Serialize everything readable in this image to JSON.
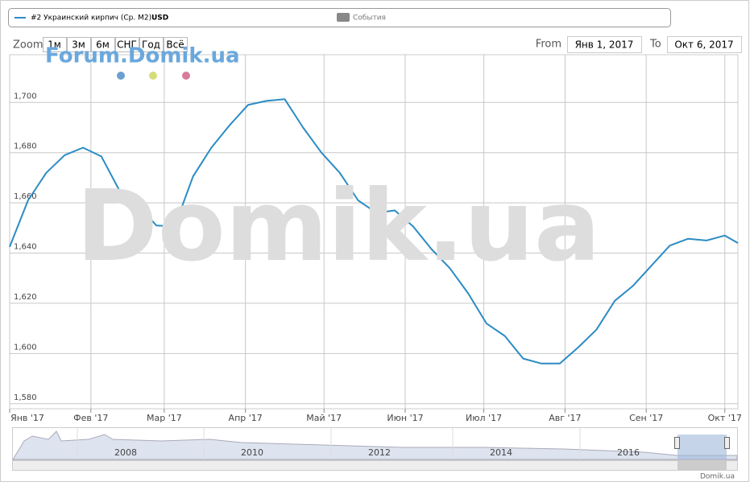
{
  "chart_data": {
    "type": "line",
    "series": [
      {
        "name": "#2 Украинский кирпич (Ср. M2)",
        "unit": "USD",
        "color": "#2b8cc4",
        "x": [
          "2017-01-01",
          "2017-01-08",
          "2017-01-15",
          "2017-01-22",
          "2017-01-29",
          "2017-02-05",
          "2017-02-12",
          "2017-02-19",
          "2017-02-26",
          "2017-03-05",
          "2017-03-12",
          "2017-03-19",
          "2017-03-26",
          "2017-04-02",
          "2017-04-09",
          "2017-04-16",
          "2017-04-23",
          "2017-04-30",
          "2017-05-07",
          "2017-05-14",
          "2017-05-21",
          "2017-05-28",
          "2017-06-04",
          "2017-06-11",
          "2017-06-18",
          "2017-06-25",
          "2017-07-02",
          "2017-07-09",
          "2017-07-16",
          "2017-07-23",
          "2017-07-30",
          "2017-08-06",
          "2017-08-13",
          "2017-08-20",
          "2017-08-27",
          "2017-09-03",
          "2017-09-10",
          "2017-09-17",
          "2017-09-24",
          "2017-10-01",
          "2017-10-06"
        ],
        "values": [
          1642.5,
          1661,
          1672,
          1679,
          1682,
          1678.5,
          1664.7,
          1659,
          1651,
          1650.6,
          1670.5,
          1682,
          1691,
          1699,
          1700.6,
          1701.3,
          1690,
          1680,
          1672,
          1661,
          1656,
          1657,
          1650.6,
          1641.6,
          1634,
          1624,
          1612,
          1607,
          1598,
          1596,
          1596,
          1602.4,
          1609.5,
          1621,
          1627,
          1635,
          1643,
          1645.7,
          1645,
          1647,
          1644
        ]
      }
    ],
    "events_legend": "События",
    "xlim": [
      "2017-01-01",
      "2017-10-06"
    ],
    "xticks": [
      {
        "value": "2017-01-01",
        "label": "Янв '17"
      },
      {
        "value": "2017-02-01",
        "label": "Фев '17"
      },
      {
        "value": "2017-03-01",
        "label": "Мар '17"
      },
      {
        "value": "2017-04-01",
        "label": "Апр '17"
      },
      {
        "value": "2017-05-01",
        "label": "Май '17"
      },
      {
        "value": "2017-06-01",
        "label": "Июн '17"
      },
      {
        "value": "2017-07-01",
        "label": "Июл '17"
      },
      {
        "value": "2017-08-01",
        "label": "Авг '17"
      },
      {
        "value": "2017-09-01",
        "label": "Сен '17"
      },
      {
        "value": "2017-10-01",
        "label": "Окт '17"
      }
    ],
    "ylim": [
      1578,
      1719
    ],
    "yticks": [
      {
        "value": 1580,
        "label": "1,580"
      },
      {
        "value": 1600,
        "label": "1,600"
      },
      {
        "value": 1620,
        "label": "1,620"
      },
      {
        "value": 1640,
        "label": "1,640"
      },
      {
        "value": 1660,
        "label": "1,660"
      },
      {
        "value": 1680,
        "label": "1,680"
      },
      {
        "value": 1700,
        "label": "1,700"
      }
    ],
    "grid": true,
    "zoom": {
      "label": "Zoom",
      "buttons": [
        "1м",
        "3м",
        "6м",
        "СНГ",
        "Год",
        "Всё"
      ],
      "from_label": "From",
      "from": "Янв 1, 2017",
      "to_label": "To",
      "to": "Окт 6, 2017"
    },
    "navigator": {
      "labels": [
        "2008",
        "2010",
        "2012",
        "2014",
        "2016"
      ]
    },
    "watermark": "Domik.ua",
    "forum": "Forum.Domik.ua",
    "credit": "Domik.ua"
  }
}
